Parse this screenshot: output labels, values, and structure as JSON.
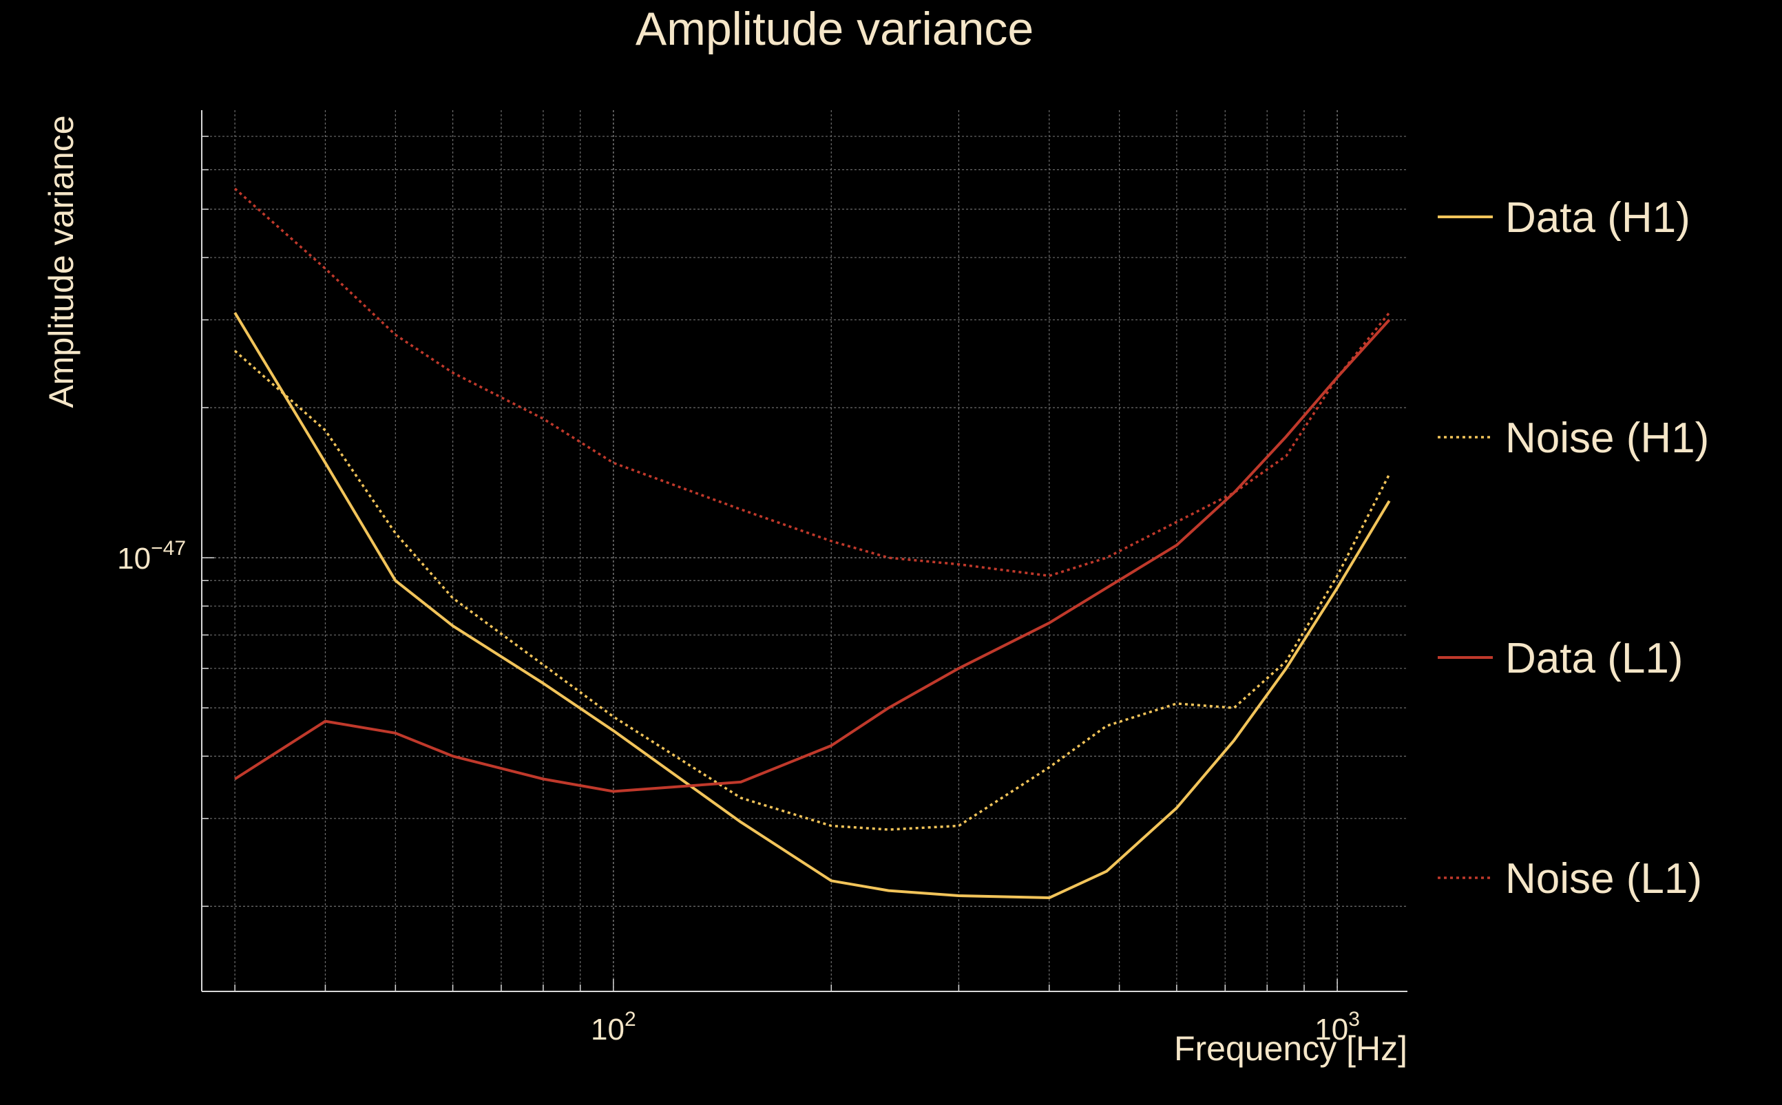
{
  "chart_data": {
    "type": "line",
    "title": "Amplitude variance",
    "xlabel": "Frequency [Hz]",
    "ylabel": "Amplitude variance",
    "x_scale": "log",
    "y_scale": "log",
    "xlim": [
      27,
      1250
    ],
    "ylim": [
      1.35e-48,
      7.9e-47
    ],
    "x_ticks": [
      {
        "value": 100,
        "base": "10",
        "exp": "2"
      },
      {
        "value": 1000,
        "base": "10",
        "exp": "3"
      }
    ],
    "y_ticks": [
      {
        "value": 1e-47,
        "base": "10",
        "exp": "−47"
      }
    ],
    "grid": true,
    "legend_position": "right",
    "colors": {
      "background": "#000000",
      "text": "#f5e6c8",
      "grid": "#6e6e6e",
      "axis": "#d8d8d8",
      "h1": "#f2c45a",
      "l1": "#c0392b"
    },
    "series": [
      {
        "name": "Data (H1)",
        "color": "#f2c45a",
        "style": "solid",
        "x": [
          30,
          40,
          50,
          60,
          80,
          100,
          150,
          200,
          240,
          300,
          400,
          480,
          600,
          720,
          850,
          1000,
          1180
        ],
        "y": [
          3.1e-47,
          1.55e-47,
          9e-48,
          7.3e-48,
          5.6e-48,
          4.5e-48,
          2.95e-48,
          2.25e-48,
          2.15e-48,
          2.1e-48,
          2.08e-48,
          2.35e-48,
          3.15e-48,
          4.3e-48,
          6e-48,
          8.7e-48,
          1.3e-47
        ]
      },
      {
        "name": "Noise (H1)",
        "color": "#f2c45a",
        "style": "dotted",
        "x": [
          30,
          40,
          50,
          60,
          80,
          100,
          150,
          200,
          240,
          300,
          400,
          480,
          600,
          720,
          850,
          1000,
          1180
        ],
        "y": [
          2.6e-47,
          1.8e-47,
          1.12e-47,
          8.3e-48,
          6.1e-48,
          4.8e-48,
          3.3e-48,
          2.9e-48,
          2.85e-48,
          2.9e-48,
          3.8e-48,
          4.6e-48,
          5.1e-48,
          5e-48,
          6.2e-48,
          9.2e-48,
          1.47e-47
        ]
      },
      {
        "name": "Data (L1)",
        "color": "#c0392b",
        "style": "solid",
        "x": [
          30,
          40,
          50,
          60,
          80,
          100,
          150,
          200,
          240,
          300,
          400,
          480,
          600,
          720,
          850,
          1000,
          1180
        ],
        "y": [
          3.6e-48,
          4.7e-48,
          4.45e-48,
          4e-48,
          3.6e-48,
          3.4e-48,
          3.55e-48,
          4.2e-48,
          5e-48,
          6e-48,
          7.4e-48,
          8.7e-48,
          1.06e-47,
          1.35e-47,
          1.75e-47,
          2.3e-47,
          3e-47
        ]
      },
      {
        "name": "Noise (L1)",
        "color": "#c0392b",
        "style": "dotted",
        "x": [
          30,
          40,
          50,
          60,
          80,
          100,
          150,
          200,
          240,
          300,
          400,
          480,
          600,
          720,
          850,
          1000,
          1180
        ],
        "y": [
          5.5e-47,
          3.8e-47,
          2.8e-47,
          2.35e-47,
          1.9e-47,
          1.55e-47,
          1.25e-47,
          1.08e-47,
          1e-47,
          9.7e-48,
          9.2e-48,
          1e-47,
          1.18e-47,
          1.35e-47,
          1.6e-47,
          2.3e-47,
          3.1e-47
        ]
      }
    ]
  }
}
